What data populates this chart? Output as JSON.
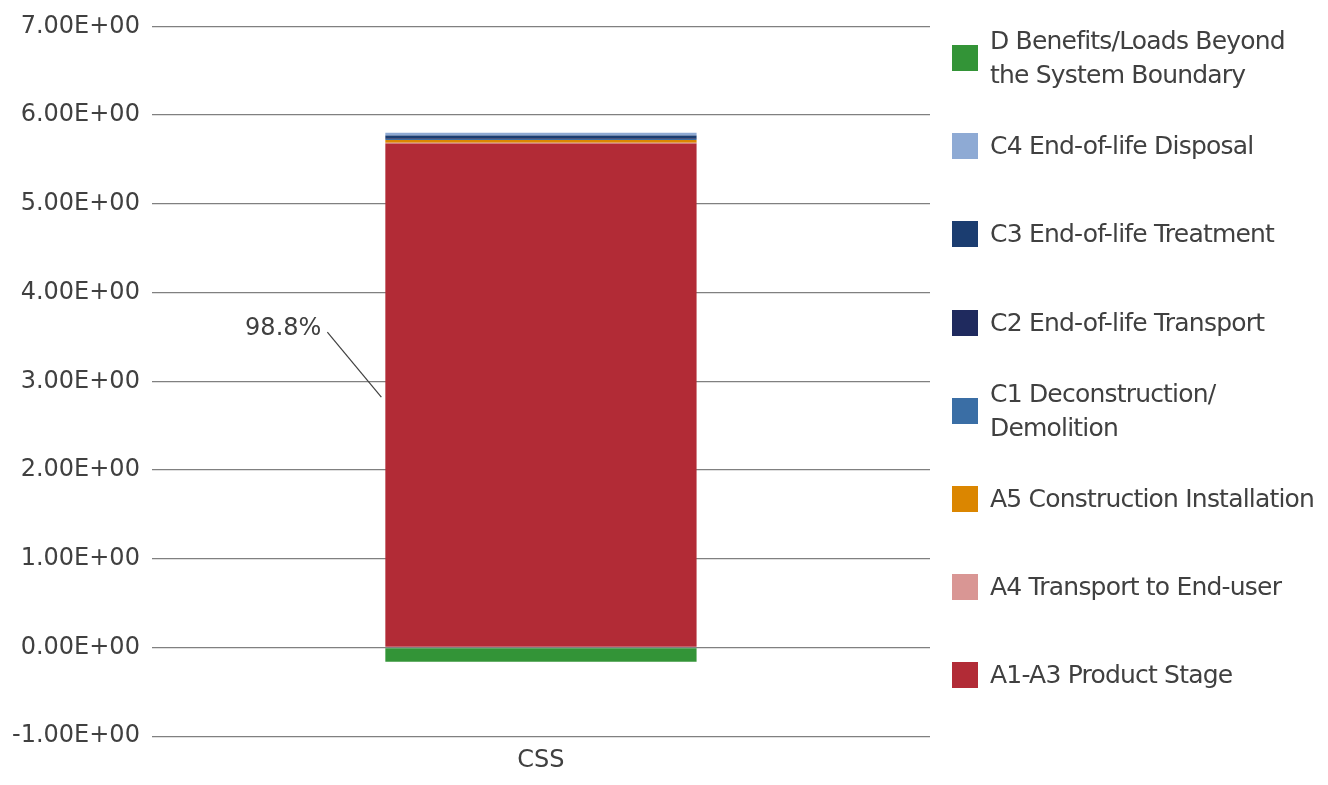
{
  "chart_data": {
    "type": "bar",
    "stacked": true,
    "categories": [
      "CSS"
    ],
    "series": [
      {
        "name": "A1-A3 Product Stage",
        "color": "#b22b36",
        "values": [
          5.68
        ]
      },
      {
        "name": "A4 Transport to End-user",
        "color": "#d99694",
        "values": [
          0.01
        ]
      },
      {
        "name": "A5 Construction Installation",
        "color": "#db8600",
        "values": [
          0.03
        ]
      },
      {
        "name": "C1 Deconstruction/ Demolition",
        "color": "#3a6ea5",
        "values": [
          0.01
        ]
      },
      {
        "name": "C2 End-of-life Transport",
        "color": "#1f2a5e",
        "values": [
          0.01
        ]
      },
      {
        "name": "C3 End-of-life Treatment",
        "color": "#1b3d70",
        "values": [
          0.03
        ]
      },
      {
        "name": "C4 End-of-life Disposal",
        "color": "#8eaad4",
        "values": [
          0.03
        ]
      },
      {
        "name": "D Benefits/Loads Beyond the System Boundary",
        "color": "#339437",
        "values": [
          -0.16
        ]
      }
    ],
    "ylim": [
      -1,
      7
    ],
    "yticks": [
      {
        "value": -1,
        "label": "-1.00E+00"
      },
      {
        "value": 0,
        "label": "0.00E+00"
      },
      {
        "value": 1,
        "label": "1.00E+00"
      },
      {
        "value": 2,
        "label": "2.00E+00"
      },
      {
        "value": 3,
        "label": "3.00E+00"
      },
      {
        "value": 4,
        "label": "4.00E+00"
      },
      {
        "value": 5,
        "label": "5.00E+00"
      },
      {
        "value": 6,
        "label": "6.00E+00"
      },
      {
        "value": 7,
        "label": "7.00E+00"
      }
    ],
    "grid": "y",
    "legend": "right",
    "annotations": [
      "98.8%"
    ]
  }
}
